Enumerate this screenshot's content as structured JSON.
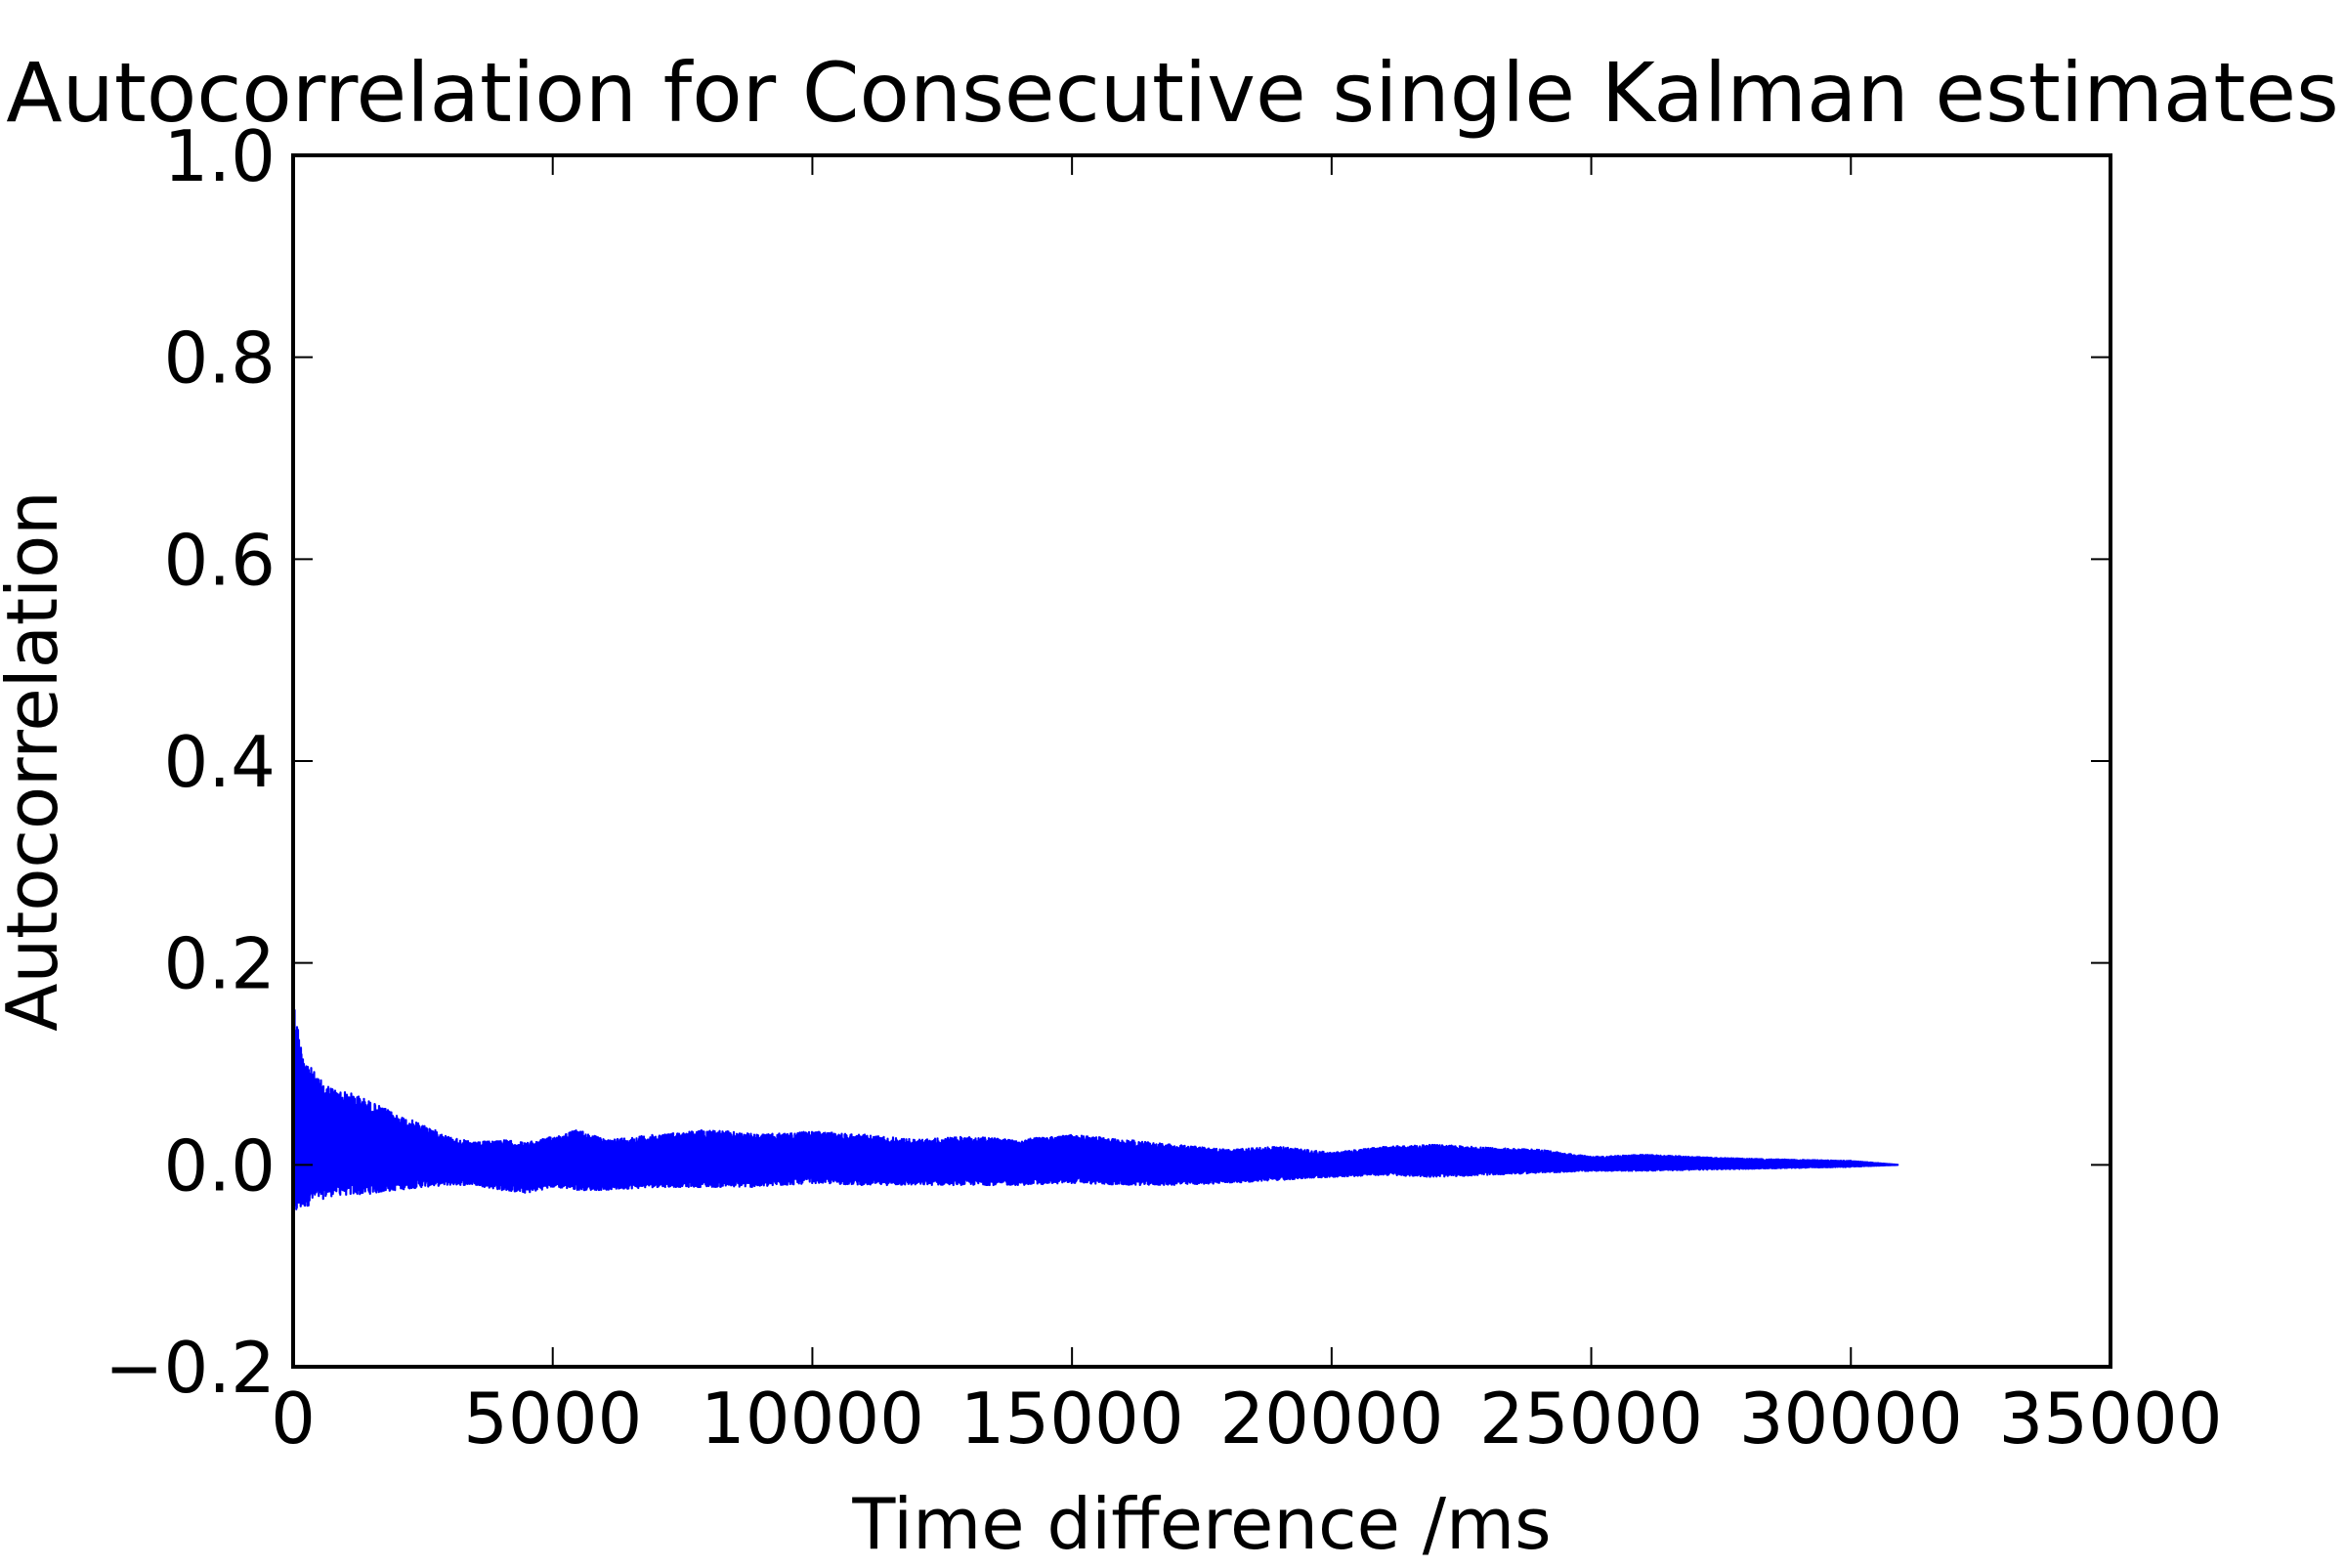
{
  "chart_data": {
    "type": "line",
    "title": "Autocorrelation for Consecutive single Kalman estimates",
    "xlabel": "Time difference /ms",
    "ylabel": "Autocorrelation",
    "xlim": [
      0,
      35000
    ],
    "ylim": [
      -0.2,
      1.0
    ],
    "xticks": [
      0,
      5000,
      10000,
      15000,
      20000,
      25000,
      30000,
      35000
    ],
    "xtick_labels": [
      "0",
      "5000",
      "10000",
      "15000",
      "20000",
      "25000",
      "30000",
      "35000"
    ],
    "yticks": [
      -0.2,
      0.0,
      0.2,
      0.4,
      0.6,
      0.8,
      1.0
    ],
    "ytick_labels": [
      "−0.2",
      "0.0",
      "0.2",
      "0.4",
      "0.6",
      "0.8",
      "1.0"
    ],
    "grid": false,
    "legend": false,
    "series": [
      {
        "color": "#0000ff",
        "x_range": [
          0,
          30900
        ],
        "note": "dense oscillating signal; envelope below gives upper/lower bounds",
        "envelope": {
          "x": [
            0,
            50,
            150,
            300,
            500,
            800,
            1200,
            1600,
            2000,
            2500,
            3000,
            3500,
            4000,
            4500,
            5000,
            5500,
            6000,
            7000,
            8000,
            9000,
            10000,
            11000,
            12000,
            13000,
            14000,
            15000,
            16000,
            17000,
            18000,
            19000,
            20000,
            21000,
            22000,
            23000,
            24000,
            25000,
            26000,
            27000,
            28000,
            29000,
            30000,
            30900
          ],
          "upper": [
            0.17,
            0.15,
            0.12,
            0.1,
            0.085,
            0.075,
            0.07,
            0.06,
            0.05,
            0.04,
            0.028,
            0.022,
            0.025,
            0.022,
            0.028,
            0.035,
            0.025,
            0.03,
            0.035,
            0.03,
            0.033,
            0.03,
            0.025,
            0.028,
            0.025,
            0.03,
            0.025,
            0.02,
            0.015,
            0.018,
            0.012,
            0.018,
            0.02,
            0.017,
            0.015,
            0.008,
            0.01,
            0.008,
            0.006,
            0.005,
            0.004,
            0.0
          ],
          "lower": [
            -0.055,
            -0.05,
            -0.045,
            -0.04,
            -0.035,
            -0.03,
            -0.03,
            -0.028,
            -0.025,
            -0.022,
            -0.02,
            -0.02,
            -0.025,
            -0.028,
            -0.022,
            -0.025,
            -0.025,
            -0.022,
            -0.022,
            -0.022,
            -0.018,
            -0.02,
            -0.02,
            -0.02,
            -0.02,
            -0.018,
            -0.02,
            -0.02,
            -0.018,
            -0.015,
            -0.012,
            -0.01,
            -0.012,
            -0.01,
            -0.008,
            -0.006,
            -0.006,
            -0.005,
            -0.004,
            -0.003,
            -0.002,
            0.0
          ]
        }
      }
    ]
  }
}
